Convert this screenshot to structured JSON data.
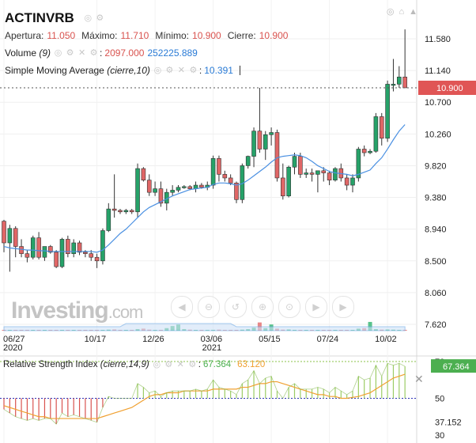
{
  "symbol": "ACTINVRB",
  "ohlc": {
    "apertura_label": "Apertura:",
    "apertura": "11.050",
    "maximo_label": "Máximo:",
    "maximo": "11.710",
    "minimo_label": "Mínimo:",
    "minimo": "10.900",
    "cierre_label": "Cierre:",
    "cierre": "10.900"
  },
  "volume_indicator": {
    "name": "Volume",
    "param": "(9)",
    "value1": "2097.000",
    "value2": "252225.889"
  },
  "sma_indicator": {
    "name": "Simple Moving Average",
    "param": "(cierre,10)",
    "value": "10.391"
  },
  "rsi_indicator": {
    "name": "Relative Strength Index",
    "param": "(cierre,14,9)",
    "value1": "67.364",
    "value2": "63.120"
  },
  "watermark": {
    "brand": "Investing",
    "suffix": ".com"
  },
  "colors": {
    "up": "#26a269",
    "down": "#e06666",
    "sma": "#4a90e2",
    "rsi_signal": "#f0a030",
    "price_tag": "#e05555",
    "rsi_tag": "#4caf50"
  },
  "icons": [
    "eye-icon",
    "gear-icon",
    "close-icon",
    "zoom-icon",
    "arrow-left-icon",
    "arrow-right-icon"
  ],
  "chart_data": [
    {
      "type": "candlestick",
      "title": "ACTINVRB",
      "y_ticks": [
        "11.580",
        "11.140",
        "10.700",
        "10.260",
        "9.820",
        "9.380",
        "8.940",
        "8.500",
        "8.060",
        "7.620"
      ],
      "ylim": [
        7.6,
        11.8
      ],
      "x_ticks": [
        {
          "label": "06/27",
          "sub": "2020",
          "index": 0
        },
        {
          "label": "10/17",
          "sub": "",
          "index": 16
        },
        {
          "label": "12/26",
          "sub": "",
          "index": 26
        },
        {
          "label": "03/06",
          "sub": "2021",
          "index": 36
        },
        {
          "label": "05/15",
          "sub": "",
          "index": 46
        },
        {
          "label": "07/24",
          "sub": "",
          "index": 56
        },
        {
          "label": "10/02",
          "sub": "",
          "index": 66
        }
      ],
      "last_price": "10.900",
      "candles": [
        [
          9.05,
          9.07,
          8.62,
          8.75
        ],
        [
          8.75,
          9.0,
          8.35,
          8.95
        ],
        [
          8.95,
          8.98,
          8.55,
          8.7
        ],
        [
          8.7,
          8.8,
          8.55,
          8.6
        ],
        [
          8.6,
          8.65,
          8.48,
          8.55
        ],
        [
          8.55,
          8.85,
          8.52,
          8.82
        ],
        [
          8.82,
          8.9,
          8.52,
          8.55
        ],
        [
          8.55,
          8.7,
          8.5,
          8.7
        ],
        [
          8.7,
          8.72,
          8.6,
          8.62
        ],
        [
          8.62,
          8.65,
          8.4,
          8.42
        ],
        [
          8.42,
          8.82,
          8.4,
          8.8
        ],
        [
          8.8,
          8.85,
          8.55,
          8.6
        ],
        [
          8.6,
          8.8,
          8.55,
          8.75
        ],
        [
          8.75,
          8.78,
          8.58,
          8.62
        ],
        [
          8.62,
          8.65,
          8.55,
          8.6
        ],
        [
          8.6,
          8.65,
          8.5,
          8.55
        ],
        [
          8.55,
          8.6,
          8.4,
          8.5
        ],
        [
          8.5,
          8.95,
          8.45,
          8.92
        ],
        [
          8.92,
          9.3,
          8.9,
          9.22
        ],
        [
          9.22,
          9.7,
          9.1,
          9.2
        ],
        [
          9.2,
          9.22,
          9.15,
          9.18
        ],
        [
          9.18,
          9.22,
          9.15,
          9.2
        ],
        [
          9.2,
          9.22,
          9.15,
          9.18
        ],
        [
          9.18,
          9.85,
          9.1,
          9.78
        ],
        [
          9.78,
          9.8,
          9.6,
          9.62
        ],
        [
          9.62,
          9.7,
          9.4,
          9.45
        ],
        [
          9.45,
          9.6,
          9.4,
          9.5
        ],
        [
          9.5,
          9.6,
          9.25,
          9.3
        ],
        [
          9.3,
          9.5,
          9.2,
          9.45
        ],
        [
          9.45,
          9.55,
          9.4,
          9.48
        ],
        [
          9.48,
          9.55,
          9.45,
          9.52
        ],
        [
          9.52,
          9.55,
          9.5,
          9.53
        ],
        [
          9.53,
          9.55,
          9.48,
          9.5
        ],
        [
          9.5,
          9.6,
          9.45,
          9.55
        ],
        [
          9.55,
          9.58,
          9.5,
          9.52
        ],
        [
          9.52,
          9.6,
          9.48,
          9.55
        ],
        [
          9.55,
          9.96,
          9.5,
          9.92
        ],
        [
          9.92,
          9.96,
          9.6,
          9.7
        ],
        [
          9.7,
          9.75,
          9.6,
          9.65
        ],
        [
          9.65,
          9.7,
          9.55,
          9.58
        ],
        [
          9.58,
          9.6,
          9.3,
          9.35
        ],
        [
          9.35,
          9.85,
          9.3,
          9.82
        ],
        [
          9.82,
          9.96,
          9.78,
          9.95
        ],
        [
          9.95,
          10.35,
          9.8,
          10.3
        ],
        [
          10.3,
          10.9,
          10.0,
          10.05
        ],
        [
          10.05,
          10.3,
          9.9,
          10.25
        ],
        [
          10.25,
          10.35,
          10.1,
          10.28
        ],
        [
          10.28,
          10.32,
          9.6,
          9.65
        ],
        [
          9.65,
          9.85,
          9.35,
          9.4
        ],
        [
          9.4,
          9.82,
          9.38,
          9.8
        ],
        [
          9.8,
          10.0,
          9.7,
          9.95
        ],
        [
          9.95,
          10.0,
          9.65,
          9.7
        ],
        [
          9.7,
          9.78,
          9.65,
          9.72
        ],
        [
          9.72,
          9.78,
          9.6,
          9.7
        ],
        [
          9.7,
          9.75,
          9.45,
          9.75
        ],
        [
          9.75,
          9.8,
          9.6,
          9.72
        ],
        [
          9.72,
          9.75,
          9.55,
          9.62
        ],
        [
          9.62,
          9.8,
          9.6,
          9.78
        ],
        [
          9.78,
          9.85,
          9.6,
          9.65
        ],
        [
          9.65,
          9.7,
          9.48,
          9.55
        ],
        [
          9.55,
          9.7,
          9.45,
          9.65
        ],
        [
          9.65,
          10.08,
          9.6,
          10.05
        ],
        [
          10.05,
          10.1,
          9.95,
          10.0
        ],
        [
          10.0,
          10.05,
          9.98,
          10.02
        ],
        [
          10.02,
          10.55,
          10.0,
          10.5
        ],
        [
          10.5,
          10.55,
          10.1,
          10.2
        ],
        [
          10.2,
          11.0,
          10.15,
          10.95
        ],
        [
          10.95,
          11.3,
          10.85,
          10.95
        ],
        [
          10.95,
          11.2,
          10.9,
          11.05
        ],
        [
          11.05,
          11.71,
          10.9,
          10.9
        ]
      ],
      "sma": [
        8.7,
        8.68,
        8.67,
        8.66,
        8.65,
        8.65,
        8.64,
        8.64,
        8.63,
        8.63,
        8.63,
        8.63,
        8.63,
        8.63,
        8.63,
        8.63,
        8.62,
        8.65,
        8.72,
        8.8,
        8.88,
        8.94,
        9.02,
        9.1,
        9.18,
        9.24,
        9.28,
        9.32,
        9.36,
        9.4,
        9.43,
        9.46,
        9.49,
        9.5,
        9.51,
        9.52,
        9.56,
        9.58,
        9.58,
        9.57,
        9.55,
        9.57,
        9.62,
        9.68,
        9.74,
        9.8,
        9.87,
        9.93,
        9.95,
        9.96,
        9.97,
        9.96,
        9.93,
        9.88,
        9.82,
        9.78,
        9.74,
        9.72,
        9.71,
        9.7,
        9.68,
        9.7,
        9.73,
        9.76,
        9.85,
        9.93,
        10.05,
        10.18,
        10.3,
        10.39
      ],
      "volume": [
        0.05,
        0.03,
        0.02,
        0.03,
        0.02,
        0.02,
        0.03,
        0.02,
        0.02,
        0.02,
        0.03,
        0.02,
        0.02,
        0.02,
        0.02,
        0.02,
        0.02,
        0.06,
        0.1,
        0.12,
        0.06,
        0.04,
        0.02,
        0.15,
        0.2,
        0.1,
        0.06,
        0.05,
        0.25,
        0.45,
        0.6,
        0.15,
        0.1,
        0.05,
        0.04,
        0.03,
        0.08,
        0.1,
        0.05,
        0.04,
        0.04,
        0.1,
        0.15,
        0.3,
        0.8,
        0.25,
        0.6,
        0.2,
        0.1,
        0.12,
        0.08,
        0.05,
        0.04,
        0.04,
        0.05,
        0.06,
        0.04,
        0.05,
        0.06,
        0.04,
        0.05,
        0.2,
        0.25,
        0.85,
        0.15,
        0.1,
        0.12,
        0.1,
        0.06,
        0.08
      ]
    },
    {
      "type": "line",
      "title": "Relative Strength Index",
      "y_ticks": [
        "70",
        "50",
        "37.152",
        "30"
      ],
      "ylim": [
        30,
        72
      ],
      "current_value": "67.364",
      "rsi": [
        44,
        42,
        40,
        39,
        38,
        39,
        38,
        39,
        39,
        36,
        42,
        40,
        41,
        40,
        39,
        38,
        37,
        45,
        51,
        50,
        50,
        50,
        50,
        58,
        56,
        53,
        54,
        51,
        53,
        54,
        54,
        54,
        54,
        55,
        54,
        55,
        60,
        56,
        55,
        54,
        52,
        58,
        60,
        65,
        58,
        61,
        62,
        54,
        50,
        56,
        58,
        55,
        55,
        55,
        56,
        55,
        53,
        56,
        54,
        52,
        54,
        62,
        60,
        61,
        68,
        62,
        69,
        68,
        69,
        67.4
      ],
      "signal": [
        46,
        45,
        44,
        43,
        42,
        41,
        40,
        40,
        39,
        39,
        39,
        39,
        39,
        39,
        39,
        39,
        39,
        40,
        41,
        42,
        43,
        44,
        45,
        47,
        49,
        51,
        52,
        52,
        53,
        53,
        53,
        54,
        54,
        54,
        54,
        54,
        55,
        55,
        55,
        55,
        55,
        56,
        56,
        57,
        58,
        58,
        59,
        59,
        58,
        57,
        56,
        55,
        54,
        53,
        52,
        52,
        51,
        51,
        50,
        50,
        50.5,
        51,
        52,
        53,
        55,
        57,
        59,
        61,
        62,
        63.1
      ]
    }
  ]
}
